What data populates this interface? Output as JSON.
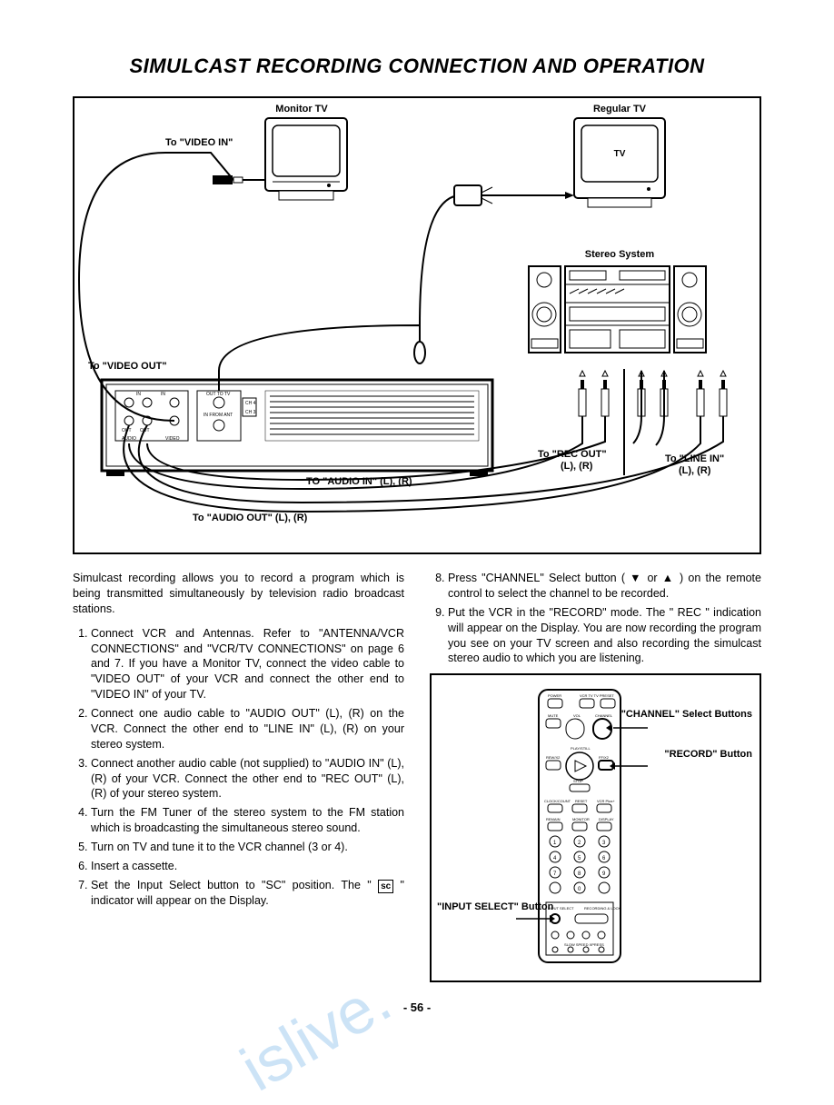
{
  "title": "SIMULCAST RECORDING CONNECTION AND OPERATION",
  "diagram": {
    "border_color": "#000000",
    "labels": {
      "monitor_tv": "Monitor TV",
      "regular_tv": "Regular TV",
      "tv_screen_text": "TV",
      "stereo_system": "Stereo System",
      "to_video_in": "To \"VIDEO IN\"",
      "to_video_out": "To  \"VIDEO OUT\"",
      "to_audio_in": "TO \"AUDIO IN\" (L), (R)",
      "to_audio_out": "To \"AUDIO OUT\" (L), (R)",
      "to_rec_out": "To \"REC OUT\"",
      "to_rec_out_lr": "(L), (R)",
      "to_line_in": "To \"LINE IN\"",
      "to_line_in_lr": "(L), (R)"
    },
    "vcr_back": {
      "ports_text": [
        "IN",
        "IN",
        "OUT",
        "OUT",
        "AUDIO",
        "VIDEO",
        "OUT TO TV",
        "IN FROM ANT",
        "CH 4",
        "CH 3"
      ]
    }
  },
  "body": {
    "intro": "Simulcast recording allows you to record a program which is being transmitted simultaneously by television radio broadcast stations.",
    "steps_left": [
      "Connect VCR and Antennas. Refer to \"ANTENNA/VCR CONNECTIONS\" and \"VCR/TV CONNECTIONS\" on page 6 and 7.\nIf you have a Monitor TV, connect the video cable to \"VIDEO OUT\" of your VCR and connect the other end to \"VIDEO IN\" of your TV.",
      "Connect one audio cable to \"AUDIO OUT\" (L), (R) on the VCR. Connect the other end to \"LINE IN\" (L), (R) on your stereo system.",
      "Connect another audio cable (not supplied) to \"AUDIO IN\" (L), (R) of your VCR. Connect the other end to \"REC OUT\" (L), (R) of your stereo system.",
      "Turn the FM Tuner of the stereo system to the FM station which is broadcasting the simultaneous stereo sound.",
      "Turn on TV and tune it to the VCR channel (3 or 4).",
      "Insert a cassette.",
      "Set the Input Select button to \"SC\" position. The \" sc \" indicator will appear on the Display."
    ],
    "steps_right": [
      "Press \"CHANNEL\" Select button ( ▼ or ▲ ) on the remote control to select the channel to be recorded.",
      "Put the VCR in the \"RECORD\" mode.\nThe \" REC \" indication will appear on the Display. You are now recording the program you see on your TV screen and also recording the simulcast stereo audio to which you are listening."
    ],
    "steps_right_start": 8,
    "sc_indicator": "sc",
    "rec_indicator": "REC"
  },
  "remote": {
    "callouts": {
      "channel": "\"CHANNEL\" Select Buttons",
      "record": "\"RECORD\" Button",
      "input_select": "\"INPUT SELECT\" Button"
    },
    "button_labels": [
      "POWER",
      "VCR TV",
      "MUTE",
      "VOL",
      "CHANNEL",
      "PLAY/STILL",
      "REW",
      "FF",
      "STOP",
      "CLOCK/COUNT",
      "RESET",
      "VCR Plus+",
      "REMAIN",
      "MONITOR",
      "DISPLAY",
      "INPUT SELECT",
      "RECORDING",
      "SLOW",
      "SPEED",
      "XPRESS"
    ]
  },
  "page_number": "- 56 -",
  "colors": {
    "text": "#000000",
    "background": "#ffffff",
    "border": "#000000",
    "watermark": "#6fb0e6"
  }
}
